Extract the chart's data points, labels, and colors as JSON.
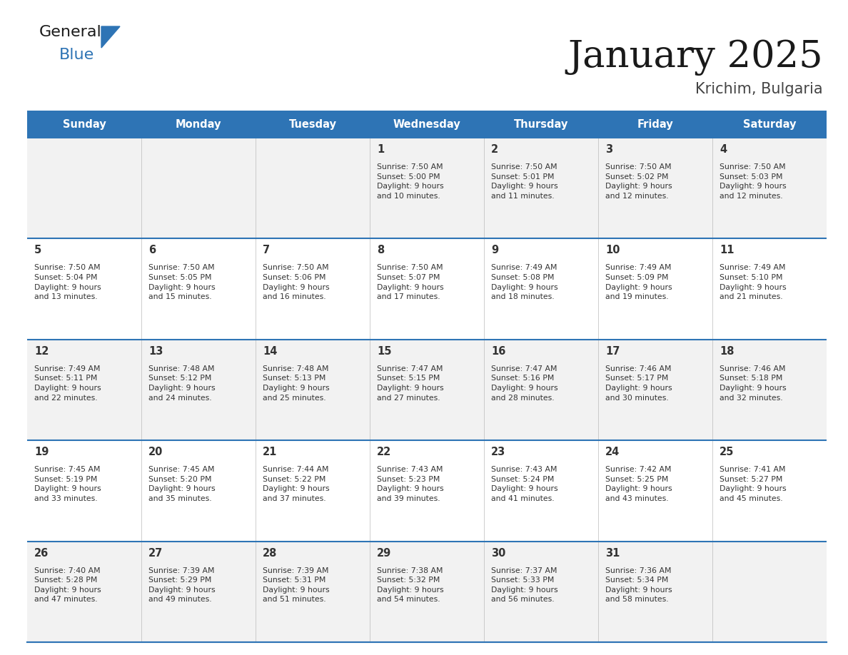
{
  "title": "January 2025",
  "subtitle": "Krichim, Bulgaria",
  "header_bg": "#2E74B5",
  "header_text_color": "#FFFFFF",
  "days_of_week": [
    "Sunday",
    "Monday",
    "Tuesday",
    "Wednesday",
    "Thursday",
    "Friday",
    "Saturday"
  ],
  "row_bg_even": "#F2F2F2",
  "row_bg_odd": "#FFFFFF",
  "cell_text_color": "#333333",
  "day_num_color": "#333333",
  "separator_color": "#2E74B5",
  "calendar_data": [
    [
      {
        "day": null,
        "sunrise": null,
        "sunset": null,
        "daylight": null
      },
      {
        "day": null,
        "sunrise": null,
        "sunset": null,
        "daylight": null
      },
      {
        "day": null,
        "sunrise": null,
        "sunset": null,
        "daylight": null
      },
      {
        "day": 1,
        "sunrise": "7:50 AM",
        "sunset": "5:00 PM",
        "daylight": "9 hours\nand 10 minutes."
      },
      {
        "day": 2,
        "sunrise": "7:50 AM",
        "sunset": "5:01 PM",
        "daylight": "9 hours\nand 11 minutes."
      },
      {
        "day": 3,
        "sunrise": "7:50 AM",
        "sunset": "5:02 PM",
        "daylight": "9 hours\nand 12 minutes."
      },
      {
        "day": 4,
        "sunrise": "7:50 AM",
        "sunset": "5:03 PM",
        "daylight": "9 hours\nand 12 minutes."
      }
    ],
    [
      {
        "day": 5,
        "sunrise": "7:50 AM",
        "sunset": "5:04 PM",
        "daylight": "9 hours\nand 13 minutes."
      },
      {
        "day": 6,
        "sunrise": "7:50 AM",
        "sunset": "5:05 PM",
        "daylight": "9 hours\nand 15 minutes."
      },
      {
        "day": 7,
        "sunrise": "7:50 AM",
        "sunset": "5:06 PM",
        "daylight": "9 hours\nand 16 minutes."
      },
      {
        "day": 8,
        "sunrise": "7:50 AM",
        "sunset": "5:07 PM",
        "daylight": "9 hours\nand 17 minutes."
      },
      {
        "day": 9,
        "sunrise": "7:49 AM",
        "sunset": "5:08 PM",
        "daylight": "9 hours\nand 18 minutes."
      },
      {
        "day": 10,
        "sunrise": "7:49 AM",
        "sunset": "5:09 PM",
        "daylight": "9 hours\nand 19 minutes."
      },
      {
        "day": 11,
        "sunrise": "7:49 AM",
        "sunset": "5:10 PM",
        "daylight": "9 hours\nand 21 minutes."
      }
    ],
    [
      {
        "day": 12,
        "sunrise": "7:49 AM",
        "sunset": "5:11 PM",
        "daylight": "9 hours\nand 22 minutes."
      },
      {
        "day": 13,
        "sunrise": "7:48 AM",
        "sunset": "5:12 PM",
        "daylight": "9 hours\nand 24 minutes."
      },
      {
        "day": 14,
        "sunrise": "7:48 AM",
        "sunset": "5:13 PM",
        "daylight": "9 hours\nand 25 minutes."
      },
      {
        "day": 15,
        "sunrise": "7:47 AM",
        "sunset": "5:15 PM",
        "daylight": "9 hours\nand 27 minutes."
      },
      {
        "day": 16,
        "sunrise": "7:47 AM",
        "sunset": "5:16 PM",
        "daylight": "9 hours\nand 28 minutes."
      },
      {
        "day": 17,
        "sunrise": "7:46 AM",
        "sunset": "5:17 PM",
        "daylight": "9 hours\nand 30 minutes."
      },
      {
        "day": 18,
        "sunrise": "7:46 AM",
        "sunset": "5:18 PM",
        "daylight": "9 hours\nand 32 minutes."
      }
    ],
    [
      {
        "day": 19,
        "sunrise": "7:45 AM",
        "sunset": "5:19 PM",
        "daylight": "9 hours\nand 33 minutes."
      },
      {
        "day": 20,
        "sunrise": "7:45 AM",
        "sunset": "5:20 PM",
        "daylight": "9 hours\nand 35 minutes."
      },
      {
        "day": 21,
        "sunrise": "7:44 AM",
        "sunset": "5:22 PM",
        "daylight": "9 hours\nand 37 minutes."
      },
      {
        "day": 22,
        "sunrise": "7:43 AM",
        "sunset": "5:23 PM",
        "daylight": "9 hours\nand 39 minutes."
      },
      {
        "day": 23,
        "sunrise": "7:43 AM",
        "sunset": "5:24 PM",
        "daylight": "9 hours\nand 41 minutes."
      },
      {
        "day": 24,
        "sunrise": "7:42 AM",
        "sunset": "5:25 PM",
        "daylight": "9 hours\nand 43 minutes."
      },
      {
        "day": 25,
        "sunrise": "7:41 AM",
        "sunset": "5:27 PM",
        "daylight": "9 hours\nand 45 minutes."
      }
    ],
    [
      {
        "day": 26,
        "sunrise": "7:40 AM",
        "sunset": "5:28 PM",
        "daylight": "9 hours\nand 47 minutes."
      },
      {
        "day": 27,
        "sunrise": "7:39 AM",
        "sunset": "5:29 PM",
        "daylight": "9 hours\nand 49 minutes."
      },
      {
        "day": 28,
        "sunrise": "7:39 AM",
        "sunset": "5:31 PM",
        "daylight": "9 hours\nand 51 minutes."
      },
      {
        "day": 29,
        "sunrise": "7:38 AM",
        "sunset": "5:32 PM",
        "daylight": "9 hours\nand 54 minutes."
      },
      {
        "day": 30,
        "sunrise": "7:37 AM",
        "sunset": "5:33 PM",
        "daylight": "9 hours\nand 56 minutes."
      },
      {
        "day": 31,
        "sunrise": "7:36 AM",
        "sunset": "5:34 PM",
        "daylight": "9 hours\nand 58 minutes."
      },
      {
        "day": null,
        "sunrise": null,
        "sunset": null,
        "daylight": null
      }
    ]
  ]
}
